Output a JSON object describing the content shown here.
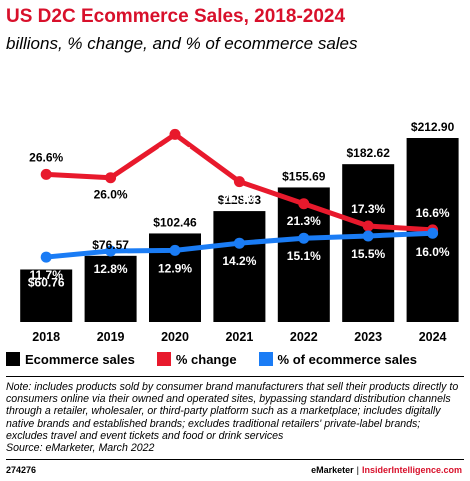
{
  "header": {
    "title": "US D2C Ecommerce Sales, 2018-2024",
    "subtitle": "billions, % change, and % of ecommerce sales"
  },
  "legend": {
    "items": [
      {
        "label": "Ecommerce sales",
        "color": "#000000"
      },
      {
        "label": "% change",
        "color": "#e8192c"
      },
      {
        "label": "% of ecommerce sales",
        "color": "#1a7cf5"
      }
    ]
  },
  "note": "Note: includes products sold by consumer brand manufacturers that sell their products directly to consumers online via their owned and operated sites, bypassing standard distribution channels through a retailer, wholesaler, or third-party platform such as a marketplace; includes digitally native brands and established brands; excludes traditional retailers' private-label brands; excludes travel and event tickets and food or drink services\nSource: eMarketer, March 2022",
  "footer": {
    "id": "274276",
    "brand_left": "eMarketer",
    "separator": "|",
    "brand_right": "InsiderIntelligence.com"
  },
  "chart_data": {
    "type": "bar",
    "categories": [
      "2018",
      "2019",
      "2020",
      "2021",
      "2022",
      "2023",
      "2024"
    ],
    "series": [
      {
        "name": "Ecommerce sales",
        "type": "bar",
        "color": "#000000",
        "values": [
          60.76,
          76.57,
          102.46,
          128.33,
          155.69,
          182.62,
          212.9
        ],
        "labels": [
          "$60.76",
          "$76.57",
          "$102.46",
          "$128.33",
          "$155.69",
          "$182.62",
          "$212.90"
        ]
      },
      {
        "name": "% change",
        "type": "line",
        "color": "#e8192c",
        "values": [
          26.6,
          26.0,
          33.8,
          25.3,
          21.3,
          17.3,
          16.6
        ],
        "labels": [
          "26.6%",
          "26.0%",
          "33.8%",
          "25.3%",
          "21.3%",
          "17.3%",
          "16.6%"
        ]
      },
      {
        "name": "% of ecommerce sales",
        "type": "line",
        "color": "#1a7cf5",
        "values": [
          11.7,
          12.8,
          12.9,
          14.2,
          15.1,
          15.5,
          16.0
        ],
        "labels": [
          "11.7%",
          "12.8%",
          "12.9%",
          "14.2%",
          "15.1%",
          "15.5%",
          "16.0%"
        ]
      }
    ],
    "bar_ylim": [
      0,
      212.9
    ],
    "line_ylim": [
      0,
      40
    ],
    "grid": false,
    "legend_position": "bottom-left"
  }
}
